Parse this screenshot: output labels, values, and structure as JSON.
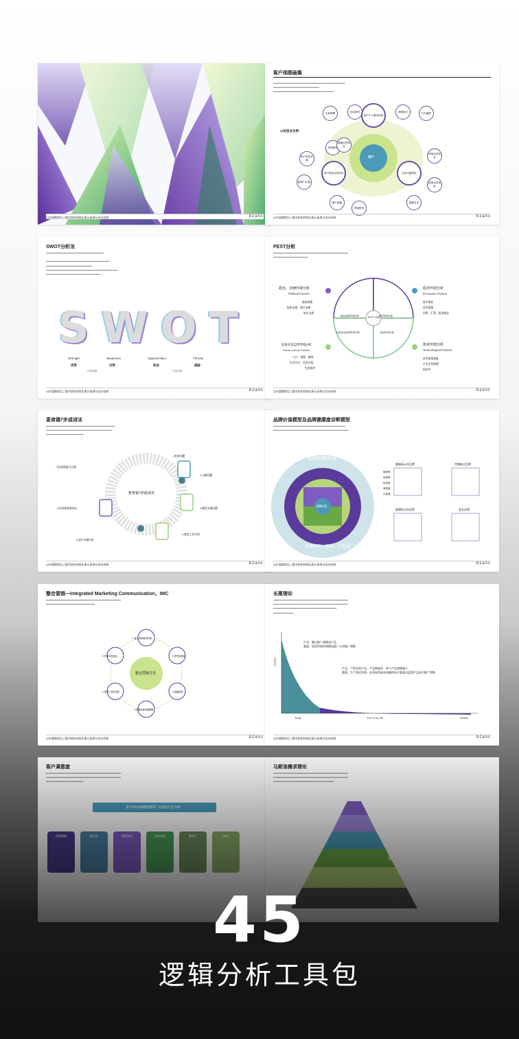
{
  "big_number": "45",
  "subtitle": "逻辑分析工具包",
  "footer_text": "以价值做首见 | 国内领先的商业演示咨询与设计机构",
  "logo": "bzanc",
  "slides": {
    "s2": {
      "title": "客户视图画像",
      "center": "用户",
      "example": "以电信业为例",
      "nodes": [
        "生命周期",
        "社会身份",
        "用户个人基本信息",
        "消费能力",
        "行为偏好",
        "电信服务",
        "用户财务价值",
        "用户电信业务特征",
        "业余兴趣特征",
        "其他业务特征",
        "影响力价值",
        "媒介接触",
        "终端型号",
        "信息业务特征",
        "渠道互动",
        "增值业务特征"
      ]
    },
    "s3": {
      "title": "SWOT分析法",
      "labels": [
        "Strength",
        "Weakness",
        "Opportunities",
        "Threats"
      ],
      "cn": [
        "优势",
        "劣势",
        "机会",
        "威胁"
      ],
      "inner": "内部因素",
      "outer": "外部因素",
      "word": "SWOT"
    },
    "s4": {
      "title": "PEST分析",
      "p_cn": "政治、法律环境分析",
      "p_en": "Political Factors",
      "p_items": [
        "政府政策",
        "国家法律、地方法律",
        "地方法规"
      ],
      "e_cn": "经济环境分析",
      "e_en": "Economic Factors",
      "e_items": [
        "经济增长",
        "货币政策",
        "利率、汇率、投资就业"
      ],
      "s_cn": "社会文化自然环境分析",
      "s_en": "Social cultural Factors",
      "s_items": [
        "人口、地理、教育",
        "生活方式、社会价值",
        "生态保护"
      ],
      "t_cn": "技术环境分析",
      "t_en": "Technological Factors",
      "t_items": [
        "技术变革速度",
        "产品生命周期",
        "新技术"
      ],
      "center": "PEST 分析",
      "q1": "政治法律环境分析",
      "q2": "经济环境分析",
      "q3": "社会文化自然环境分析",
      "q4": "技术环境分析"
    },
    "s5": {
      "title": "麦肯锡7步成诗法",
      "center": "麦肯锡7步成诗法",
      "steps": [
        "1.陈述问题",
        "2.分解问题",
        "3.确定关键问题",
        "4.制定工作计划",
        "5.进行关键分析",
        "6.形成结构性结论",
        "7.形成说服力方案"
      ]
    },
    "s6": {
      "title": "品牌价值模型及品牌健康度诊断模型",
      "outer": "品牌价值外延",
      "bottom": "品牌名称、标志、广告语",
      "core": "品牌价值",
      "right_title1": "健康高认知品牌",
      "right_title2": "传播缺乏品牌",
      "right_title3": "健康低认知品牌",
      "right_title4": "虚名品牌",
      "rows": [
        "推荐率",
        "使用率",
        "购买度",
        "美誉度",
        "认知度"
      ]
    },
    "s7": {
      "title": "整合营销—Integrated Marketing Communication，IMC",
      "center": "整合营销方法",
      "nodes": [
        "1.建立消费者资料库",
        "2.研究消费者",
        "3.接触管理",
        "4.发展传播沟通策略",
        "5.营销工具的创新",
        "6.传播手段组合"
      ]
    },
    "s8": {
      "title": "长尾理论",
      "ylabel": "Volume",
      "x1": "Body",
      "x2": "The Long Tail",
      "x3": "Variety",
      "note1": "产品：最点推广规模化产品",
      "note1b": "渠道：采用传统的规模化推广方式推广销售",
      "note2": "产品：个性化的产品，产品数量多，单个产品销售量少",
      "note2b": "渠道：为了保证利润，必须采用成本低廉的电子渠道对此类产品进行推广销售"
    },
    "s9": {
      "title": "客户满意度",
      "banner": "客户各阶段满意度需求（以通信行业为例）",
      "pills": [
        "信息网络",
        "新业务",
        "营销活动",
        "业务办理",
        "营业厅",
        "热线"
      ]
    },
    "s10": {
      "title": "马斯洛需求理论"
    }
  }
}
